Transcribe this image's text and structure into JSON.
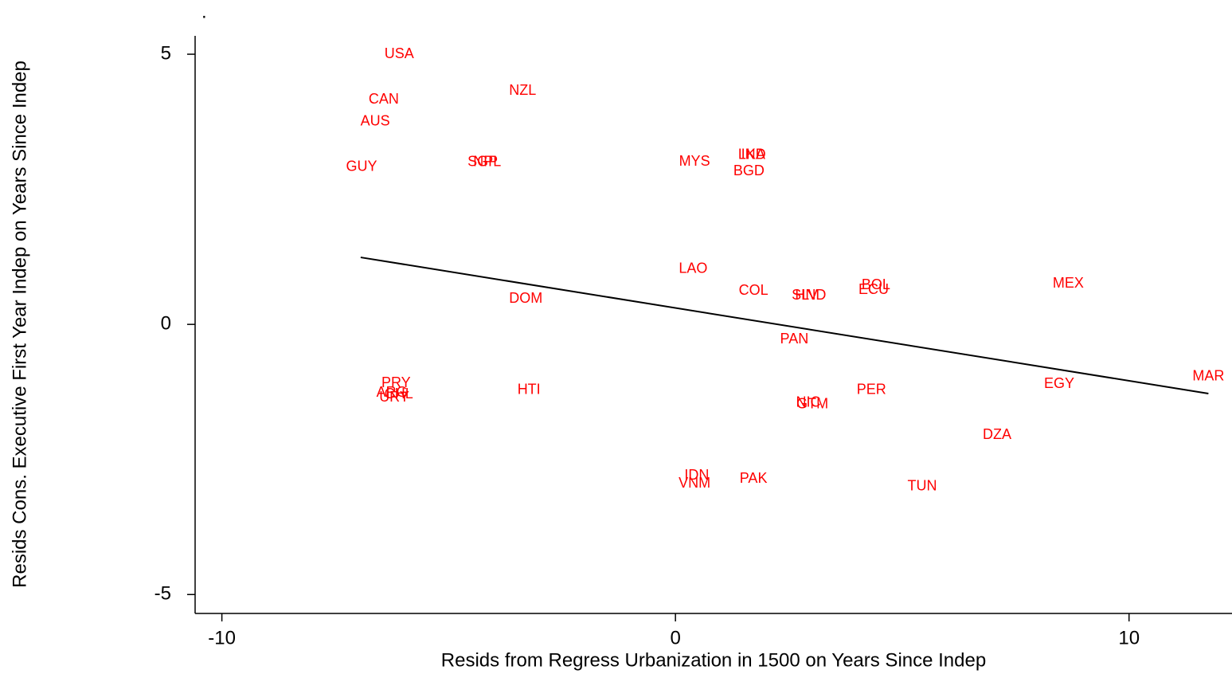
{
  "chart_data": {
    "type": "scatter",
    "title": ".",
    "x_label": "Resids from Regress Urbanization in 1500 on Years Since Indep",
    "y_label": "Resids Cons. Executive First Year Indep on Years Since Indep",
    "xlim": [
      -10.59,
      12.27
    ],
    "ylim": [
      -5.35,
      5.34
    ],
    "xticks": [
      -10,
      0,
      10
    ],
    "yticks": [
      -5,
      0,
      5
    ],
    "grid": false,
    "series": [
      {
        "color": "#ff0000",
        "labels": [
          "USA",
          "CAN",
          "AUS",
          "GUY",
          "SGP",
          "NPL",
          "NZL",
          "MYS",
          "IND",
          "LKA",
          "BGD",
          "LAO",
          "COL",
          "SLV",
          "HND",
          "BOL",
          "ECU",
          "MEX",
          "DOM",
          "PAN",
          "MAR",
          "EGY",
          "PER",
          "HTI",
          "PRY",
          "ARG",
          "CHL",
          "URY",
          "NIC",
          "GTM",
          "DZA",
          "IDN",
          "VNM",
          "PAK",
          "TUN"
        ],
        "x": [
          -6.09,
          -6.43,
          -6.62,
          -6.92,
          -4.25,
          -4.15,
          -3.37,
          0.42,
          1.72,
          1.68,
          1.62,
          0.39,
          1.72,
          2.85,
          2.98,
          4.42,
          4.37,
          8.66,
          -3.3,
          2.62,
          11.75,
          8.46,
          4.32,
          -3.23,
          -6.16,
          -6.25,
          -6.1,
          -6.2,
          2.93,
          3.02,
          7.09,
          0.47,
          0.42,
          1.72,
          5.44
        ],
        "values": [
          5.0,
          4.16,
          3.75,
          2.91,
          3.0,
          3.0,
          4.32,
          3.01,
          3.13,
          3.13,
          2.83,
          1.02,
          0.62,
          0.53,
          0.53,
          0.72,
          0.63,
          0.75,
          0.47,
          -0.28,
          -0.97,
          -1.11,
          -1.22,
          -1.22,
          -1.09,
          -1.27,
          -1.3,
          -1.36,
          -1.45,
          -1.48,
          -2.05,
          -2.8,
          -2.95,
          -2.86,
          -3.0
        ]
      },
      {
        "type": "line",
        "color": "#000000",
        "x": [
          -6.94,
          11.75
        ],
        "values": [
          1.24,
          -1.28
        ]
      }
    ]
  }
}
